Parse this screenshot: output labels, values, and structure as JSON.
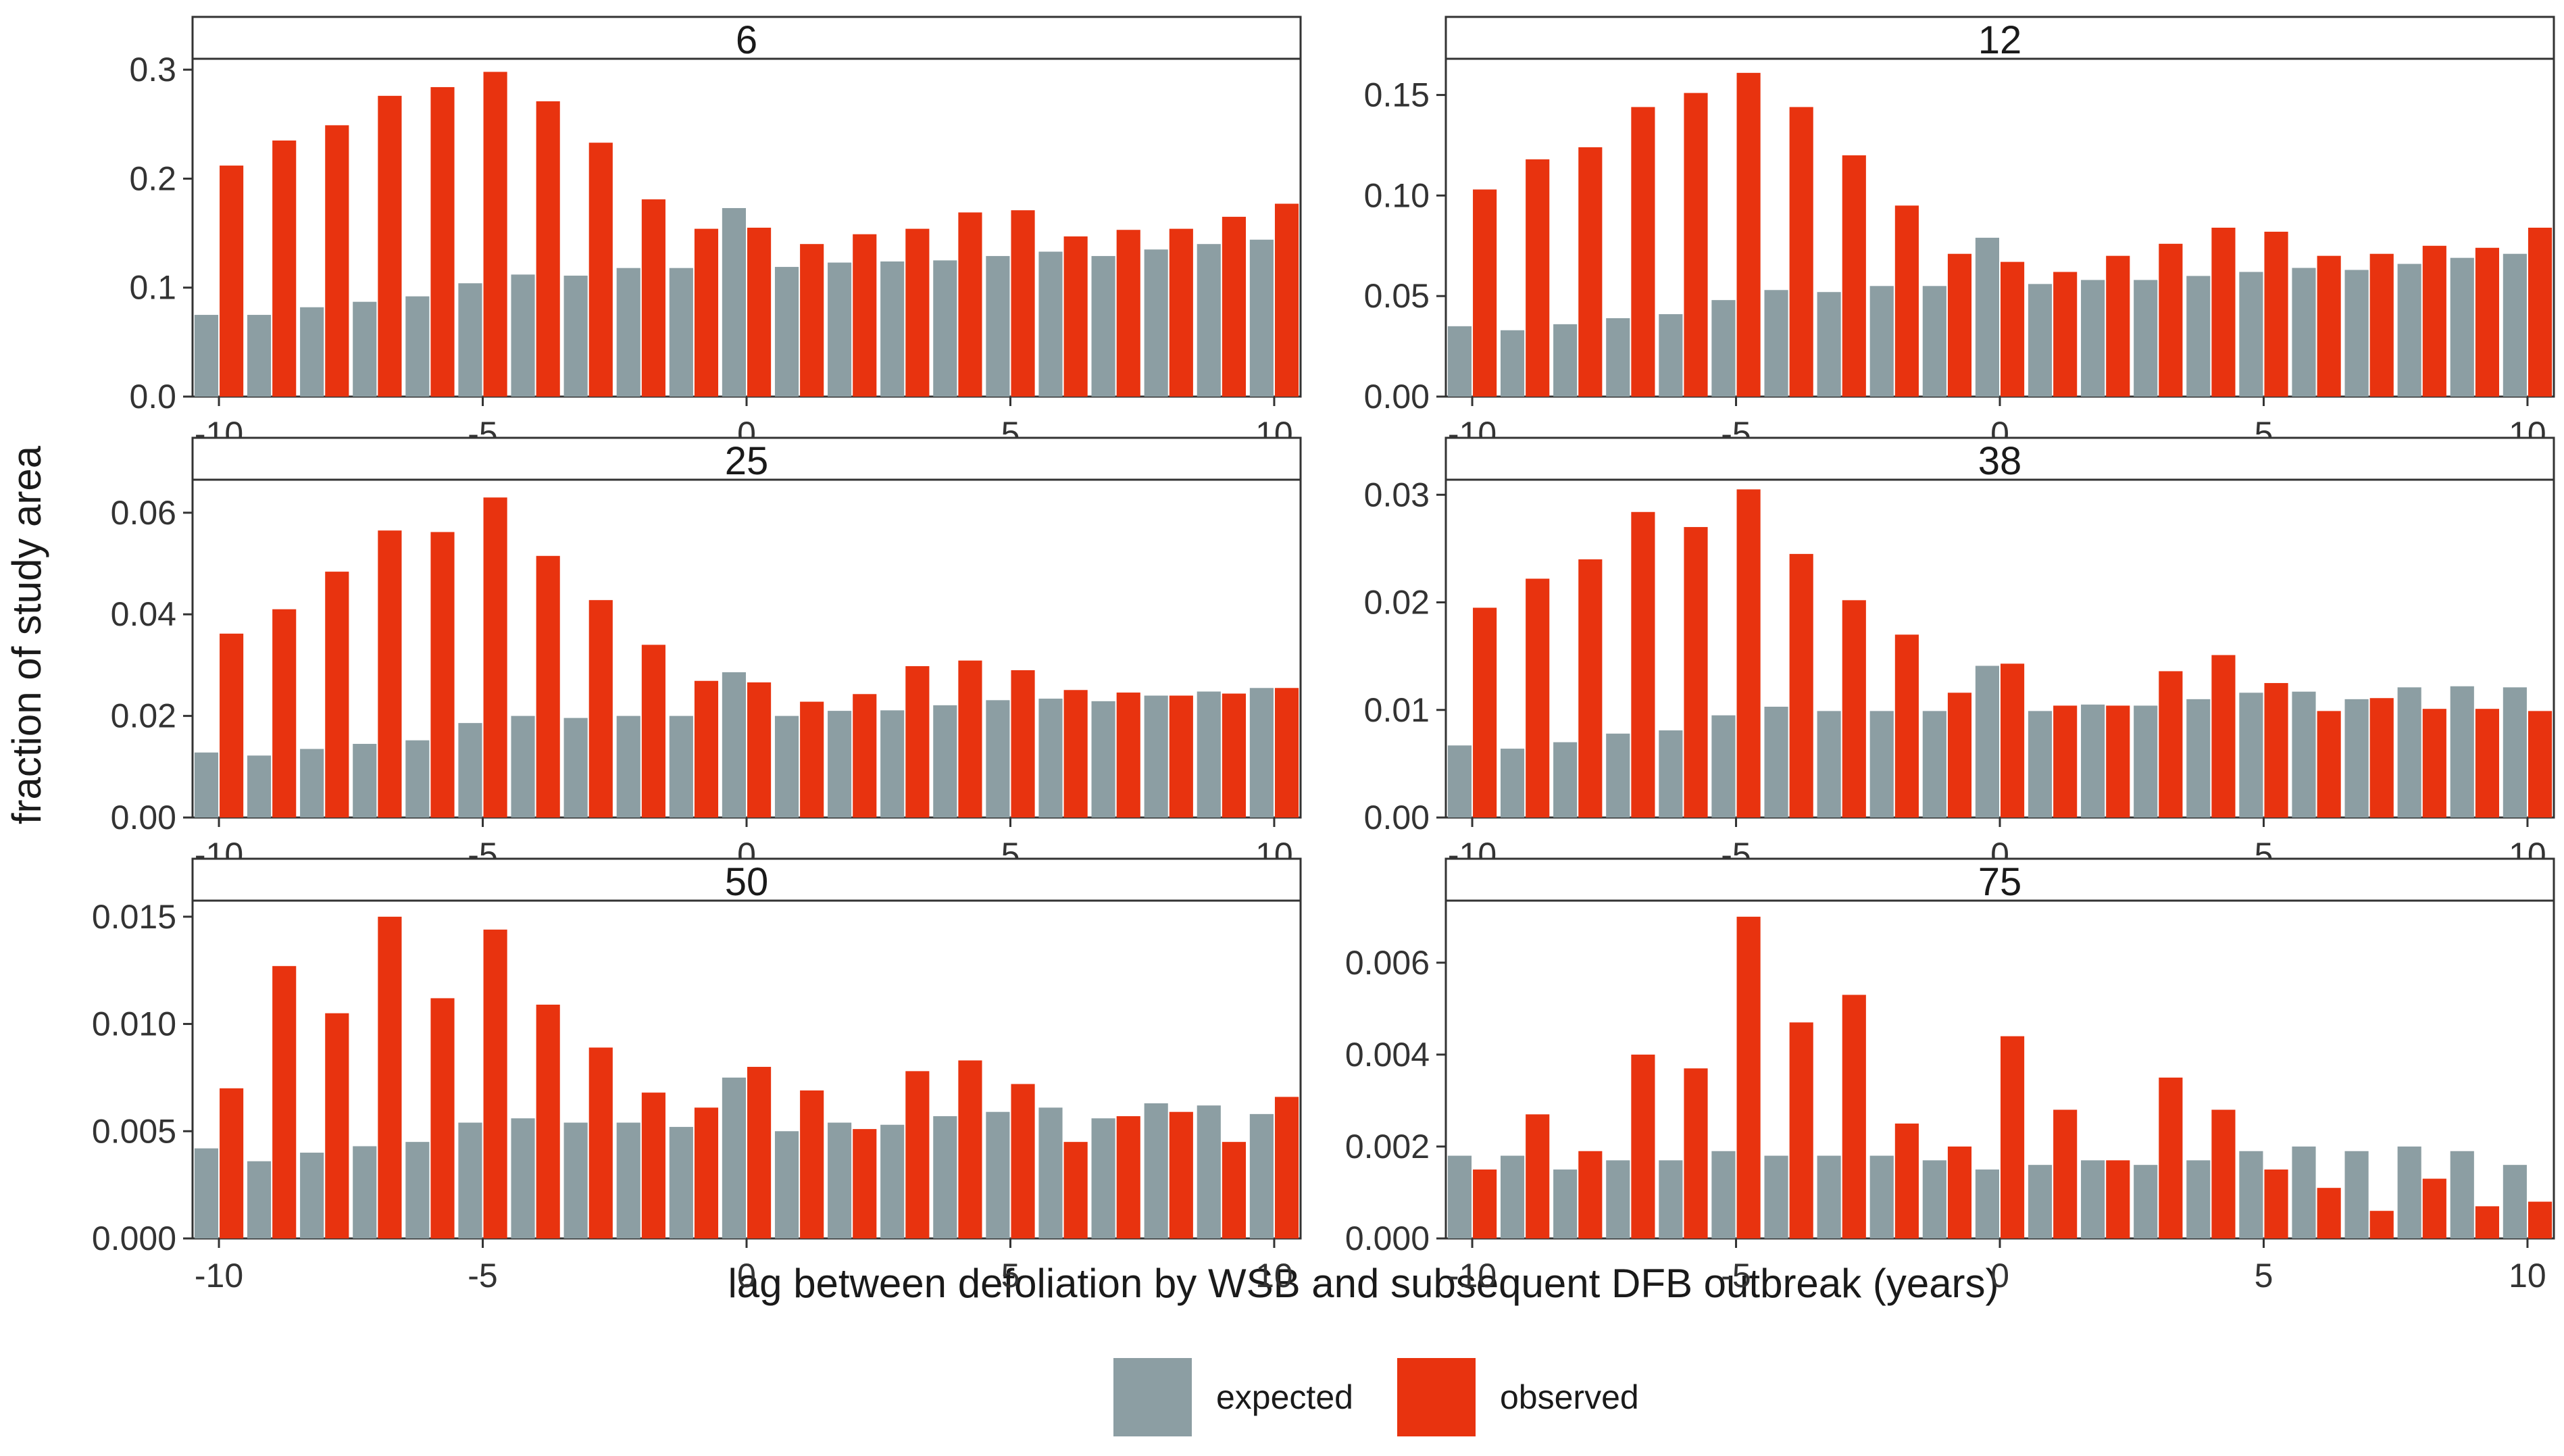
{
  "chart_data": {
    "type": "bar",
    "layout": "facet-grid 3 rows x 2 columns",
    "xlabel": "lag between defoliation by WSB and subsequent DFB outbreak (years)",
    "ylabel": "fraction of study area",
    "xlim": [
      -10.5,
      10.5
    ],
    "x_ticks": [
      -10,
      -5,
      0,
      5,
      10
    ],
    "x_tick_labels": [
      "-10",
      "-5",
      "0",
      "5",
      "10"
    ],
    "x": [
      -10,
      -9,
      -8,
      -7,
      -6,
      -5,
      -4,
      -3,
      -2,
      -1,
      0,
      1,
      2,
      3,
      4,
      5,
      6,
      7,
      8,
      9,
      10
    ],
    "legend": {
      "position": "bottom",
      "entries": [
        "expected",
        "observed"
      ]
    },
    "colors": {
      "expected": "#8C9EA3",
      "observed": "#E8330F"
    },
    "panels": [
      {
        "title": "6",
        "ylim": [
          0,
          0.31
        ],
        "y_ticks": [
          0.0,
          0.1,
          0.2,
          0.3
        ],
        "y_tick_labels": [
          "0.0",
          "0.1",
          "0.2",
          "0.3"
        ],
        "series": [
          {
            "name": "expected",
            "values": [
              0.075,
              0.075,
              0.082,
              0.087,
              0.092,
              0.104,
              0.112,
              0.111,
              0.118,
              0.118,
              0.173,
              0.119,
              0.123,
              0.124,
              0.125,
              0.129,
              0.133,
              0.129,
              0.135,
              0.14,
              0.144
            ]
          },
          {
            "name": "observed",
            "values": [
              0.212,
              0.235,
              0.249,
              0.276,
              0.284,
              0.298,
              0.271,
              0.233,
              0.181,
              0.154,
              0.155,
              0.14,
              0.149,
              0.154,
              0.169,
              0.171,
              0.147,
              0.153,
              0.154,
              0.165,
              0.177
            ]
          }
        ]
      },
      {
        "title": "12",
        "ylim": [
          0,
          0.168
        ],
        "y_ticks": [
          0.0,
          0.05,
          0.1,
          0.15
        ],
        "y_tick_labels": [
          "0.00",
          "0.05",
          "0.10",
          "0.15"
        ],
        "series": [
          {
            "name": "expected",
            "values": [
              0.035,
              0.033,
              0.036,
              0.039,
              0.041,
              0.048,
              0.053,
              0.052,
              0.055,
              0.055,
              0.079,
              0.056,
              0.058,
              0.058,
              0.06,
              0.062,
              0.064,
              0.063,
              0.066,
              0.069,
              0.071
            ]
          },
          {
            "name": "observed",
            "values": [
              0.103,
              0.118,
              0.124,
              0.144,
              0.151,
              0.161,
              0.144,
              0.12,
              0.095,
              0.071,
              0.067,
              0.062,
              0.07,
              0.076,
              0.084,
              0.082,
              0.07,
              0.071,
              0.075,
              0.074,
              0.084
            ]
          }
        ]
      },
      {
        "title": "25",
        "ylim": [
          0,
          0.0665
        ],
        "y_ticks": [
          0.0,
          0.02,
          0.04,
          0.06
        ],
        "y_tick_labels": [
          "0.00",
          "0.02",
          "0.04",
          "0.06"
        ],
        "series": [
          {
            "name": "expected",
            "values": [
              0.0128,
              0.0122,
              0.0135,
              0.0145,
              0.0152,
              0.0186,
              0.02,
              0.0196,
              0.02,
              0.02,
              0.0286,
              0.02,
              0.021,
              0.0211,
              0.0221,
              0.0231,
              0.0234,
              0.0229,
              0.024,
              0.0248,
              0.0255
            ]
          },
          {
            "name": "observed",
            "values": [
              0.0362,
              0.041,
              0.0484,
              0.0565,
              0.0562,
              0.063,
              0.0515,
              0.0428,
              0.034,
              0.0269,
              0.0266,
              0.0228,
              0.0243,
              0.0298,
              0.0309,
              0.029,
              0.0251,
              0.0246,
              0.024,
              0.0244,
              0.0255
            ]
          }
        ]
      },
      {
        "title": "38",
        "ylim": [
          0,
          0.0314
        ],
        "y_ticks": [
          0.0,
          0.01,
          0.02,
          0.03
        ],
        "y_tick_labels": [
          "0.00",
          "0.01",
          "0.02",
          "0.03"
        ],
        "series": [
          {
            "name": "expected",
            "values": [
              0.0067,
              0.0064,
              0.007,
              0.0078,
              0.0081,
              0.0095,
              0.0103,
              0.0099,
              0.0099,
              0.0099,
              0.0141,
              0.0099,
              0.0105,
              0.0104,
              0.011,
              0.0116,
              0.0117,
              0.011,
              0.0121,
              0.0122,
              0.0121
            ]
          },
          {
            "name": "observed",
            "values": [
              0.0195,
              0.0222,
              0.024,
              0.0284,
              0.027,
              0.0305,
              0.0245,
              0.0202,
              0.017,
              0.0116,
              0.0143,
              0.0104,
              0.0104,
              0.0136,
              0.0151,
              0.0125,
              0.0099,
              0.0111,
              0.0101,
              0.0101,
              0.0099
            ]
          }
        ]
      },
      {
        "title": "50",
        "ylim": [
          0,
          0.01575
        ],
        "y_ticks": [
          0.0,
          0.005,
          0.01,
          0.015
        ],
        "y_tick_labels": [
          "0.000",
          "0.005",
          "0.010",
          "0.015"
        ],
        "series": [
          {
            "name": "expected",
            "values": [
              0.0042,
              0.0036,
              0.004,
              0.0043,
              0.0045,
              0.0054,
              0.0056,
              0.0054,
              0.0054,
              0.0052,
              0.0075,
              0.005,
              0.0054,
              0.0053,
              0.0057,
              0.0059,
              0.0061,
              0.0056,
              0.0063,
              0.0062,
              0.0058
            ]
          },
          {
            "name": "observed",
            "values": [
              0.007,
              0.0127,
              0.0105,
              0.015,
              0.0112,
              0.0144,
              0.0109,
              0.0089,
              0.0068,
              0.0061,
              0.008,
              0.0069,
              0.0051,
              0.0078,
              0.0083,
              0.0072,
              0.0045,
              0.0057,
              0.0059,
              0.0045,
              0.0066
            ]
          }
        ]
      },
      {
        "title": "75",
        "ylim": [
          0,
          0.00735
        ],
        "y_ticks": [
          0.0,
          0.002,
          0.004,
          0.006
        ],
        "y_tick_labels": [
          "0.000",
          "0.002",
          "0.004",
          "0.006"
        ],
        "series": [
          {
            "name": "expected",
            "values": [
              0.0018,
              0.0018,
              0.0015,
              0.0017,
              0.0017,
              0.0019,
              0.0018,
              0.0018,
              0.0018,
              0.0017,
              0.0015,
              0.0016,
              0.0017,
              0.0016,
              0.0017,
              0.0019,
              0.002,
              0.0019,
              0.002,
              0.0019,
              0.0016
            ]
          },
          {
            "name": "observed",
            "values": [
              0.0015,
              0.0027,
              0.0019,
              0.004,
              0.0037,
              0.007,
              0.0047,
              0.0053,
              0.0025,
              0.002,
              0.0044,
              0.0028,
              0.0017,
              0.0035,
              0.0028,
              0.0015,
              0.0011,
              0.0006,
              0.0013,
              0.0007,
              0.0008
            ]
          }
        ]
      }
    ]
  }
}
